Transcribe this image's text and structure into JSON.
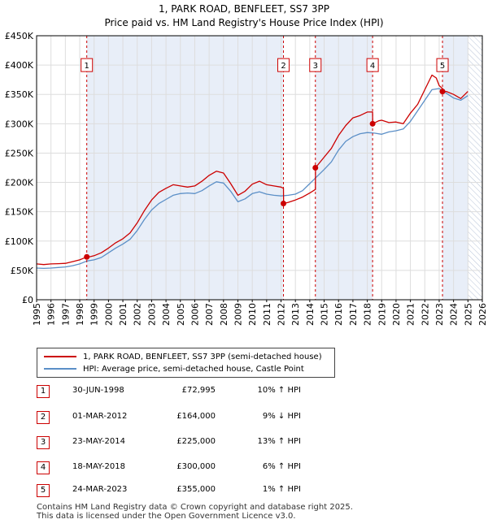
{
  "chart_data": {
    "type": "line",
    "title": "1, PARK ROAD, BENFLEET, SS7 3PP",
    "subtitle": "Price paid vs. HM Land Registry's House Price Index (HPI)",
    "xlim": [
      1995,
      2026
    ],
    "ylim": [
      0,
      450000
    ],
    "x_ticks": [
      1995,
      1996,
      1997,
      1998,
      1999,
      2000,
      2001,
      2002,
      2003,
      2004,
      2005,
      2006,
      2007,
      2008,
      2009,
      2010,
      2011,
      2012,
      2013,
      2014,
      2015,
      2016,
      2017,
      2018,
      2019,
      2020,
      2021,
      2022,
      2023,
      2024,
      2025,
      2026
    ],
    "y_ticks": [
      {
        "value": 0,
        "label": "£0"
      },
      {
        "value": 50000,
        "label": "£50K"
      },
      {
        "value": 100000,
        "label": "£100K"
      },
      {
        "value": 150000,
        "label": "£150K"
      },
      {
        "value": 200000,
        "label": "£200K"
      },
      {
        "value": 250000,
        "label": "£250K"
      },
      {
        "value": 300000,
        "label": "£300K"
      },
      {
        "value": 350000,
        "label": "£350K"
      },
      {
        "value": 400000,
        "label": "£400K"
      },
      {
        "value": 450000,
        "label": "£450K"
      }
    ],
    "data_end_year": 2025.0,
    "series": [
      {
        "name": "1, PARK ROAD, BENFLEET, SS7 3PP (semi-detached house)",
        "color": "#cc0000",
        "x": [
          1995.0,
          1995.5,
          1996.0,
          1996.5,
          1997.0,
          1997.5,
          1998.0,
          1998.49,
          1998.5,
          1999.0,
          1999.5,
          2000.0,
          2000.5,
          2001.0,
          2001.5,
          2002.0,
          2002.5,
          2003.0,
          2003.5,
          2004.0,
          2004.5,
          2005.0,
          2005.5,
          2006.0,
          2006.5,
          2007.0,
          2007.5,
          2008.0,
          2008.5,
          2009.0,
          2009.5,
          2010.0,
          2010.5,
          2011.0,
          2011.5,
          2012.0,
          2012.17,
          2012.18,
          2012.5,
          2013.0,
          2013.5,
          2014.0,
          2014.39,
          2014.4,
          2015.0,
          2015.5,
          2016.0,
          2016.5,
          2017.0,
          2017.5,
          2018.0,
          2018.37,
          2018.38,
          2018.8,
          2019.0,
          2019.5,
          2020.0,
          2020.5,
          2021.0,
          2021.5,
          2022.0,
          2022.5,
          2022.8,
          2023.0,
          2023.23,
          2023.24,
          2023.5,
          2024.0,
          2024.5,
          2025.0
        ],
        "y": [
          61000,
          60000,
          61000,
          61500,
          62000,
          65000,
          68000,
          72995,
          72000,
          75000,
          80000,
          88000,
          97000,
          104000,
          114000,
          131000,
          152000,
          170000,
          183000,
          190000,
          196000,
          194000,
          192000,
          194000,
          202000,
          212000,
          219000,
          216000,
          198000,
          178000,
          185000,
          197000,
          202000,
          196000,
          194000,
          192000,
          190000,
          164000,
          166000,
          170000,
          175000,
          182000,
          188000,
          225000,
          243000,
          258000,
          280000,
          297000,
          310000,
          314000,
          320000,
          320000,
          300000,
          305000,
          306000,
          302000,
          303000,
          300000,
          318000,
          333000,
          358000,
          383000,
          378000,
          365000,
          360000,
          355000,
          355000,
          350000,
          343000,
          355000
        ]
      },
      {
        "name": "HPI: Average price, semi-detached house, Castle Point",
        "color": "#5b8fc7",
        "x": [
          1995.0,
          1995.5,
          1996.0,
          1996.5,
          1997.0,
          1997.5,
          1998.0,
          1998.5,
          1999.0,
          1999.5,
          2000.0,
          2000.5,
          2001.0,
          2001.5,
          2002.0,
          2002.5,
          2003.0,
          2003.5,
          2004.0,
          2004.5,
          2005.0,
          2005.5,
          2006.0,
          2006.5,
          2007.0,
          2007.5,
          2008.0,
          2008.5,
          2009.0,
          2009.5,
          2010.0,
          2010.5,
          2011.0,
          2011.5,
          2012.0,
          2012.5,
          2013.0,
          2013.5,
          2014.0,
          2014.5,
          2015.0,
          2015.5,
          2016.0,
          2016.5,
          2017.0,
          2017.5,
          2018.0,
          2018.5,
          2019.0,
          2019.5,
          2020.0,
          2020.5,
          2021.0,
          2021.5,
          2022.0,
          2022.5,
          2023.0,
          2023.5,
          2024.0,
          2024.5,
          2025.0
        ],
        "y": [
          54000,
          53500,
          54000,
          55000,
          56000,
          58000,
          61000,
          66000,
          68000,
          72000,
          80000,
          88000,
          95000,
          103000,
          118000,
          137000,
          153000,
          164000,
          171000,
          178000,
          181000,
          182000,
          181000,
          186000,
          194000,
          201000,
          199000,
          185000,
          167000,
          172000,
          181000,
          184000,
          180000,
          178000,
          177000,
          178000,
          180000,
          186000,
          198000,
          210000,
          222000,
          235000,
          255000,
          270000,
          278000,
          283000,
          285000,
          284000,
          282000,
          286000,
          288000,
          291000,
          304000,
          322000,
          340000,
          358000,
          360000,
          352000,
          344000,
          340000,
          348000
        ]
      }
    ],
    "sales": [
      {
        "num": "1",
        "x": 1998.49,
        "y": 72995
      },
      {
        "num": "2",
        "x": 2012.17,
        "y": 164000
      },
      {
        "num": "3",
        "x": 2014.39,
        "y": 225000
      },
      {
        "num": "4",
        "x": 2018.37,
        "y": 300000
      },
      {
        "num": "5",
        "x": 2023.23,
        "y": 355000
      }
    ],
    "marker_label_value": 400000
  },
  "legend": {
    "property_label": "1, PARK ROAD, BENFLEET, SS7 3PP (semi-detached house)",
    "hpi_label": "HPI: Average price, semi-detached house, Castle Point"
  },
  "transactions": [
    {
      "num": "1",
      "date": "30-JUN-1998",
      "price": "£72,995",
      "pct": "10% ↑ HPI"
    },
    {
      "num": "2",
      "date": "01-MAR-2012",
      "price": "£164,000",
      "pct": "9% ↓ HPI"
    },
    {
      "num": "3",
      "date": "23-MAY-2014",
      "price": "£225,000",
      "pct": "13% ↑ HPI"
    },
    {
      "num": "4",
      "date": "18-MAY-2018",
      "price": "£300,000",
      "pct": "6% ↑ HPI"
    },
    {
      "num": "5",
      "date": "24-MAR-2023",
      "price": "£355,000",
      "pct": "1% ↑ HPI"
    }
  ],
  "footer": {
    "line1": "Contains HM Land Registry data © Crown copyright and database right 2025.",
    "line2": "This data is licensed under the Open Government Licence v3.0."
  },
  "colors": {
    "property": "#cc0000",
    "hpi": "#5b8fc7",
    "sale_band": "#e8eef8",
    "future_hatch": "#b8c4d8"
  }
}
